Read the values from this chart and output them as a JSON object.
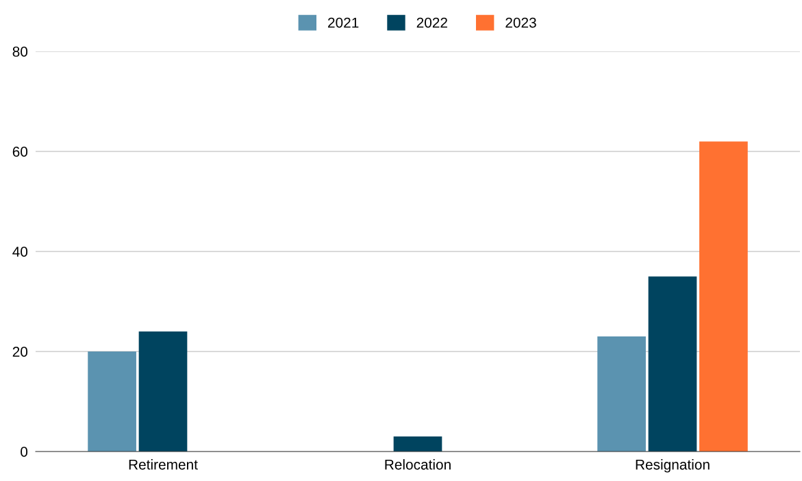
{
  "chart_data": {
    "type": "bar",
    "categories": [
      "Retirement",
      "Relocation",
      "Resignation"
    ],
    "series": [
      {
        "name": "2021",
        "color": "#5b93b0",
        "values": [
          20,
          null,
          23
        ]
      },
      {
        "name": "2022",
        "color": "#00445f",
        "values": [
          24,
          3,
          35
        ]
      },
      {
        "name": "2023",
        "color": "#ff7131",
        "values": [
          null,
          null,
          62
        ]
      }
    ],
    "ylim": [
      0,
      80
    ],
    "yticks": [
      0,
      20,
      40,
      60,
      80
    ],
    "grid": "y",
    "legend": "top"
  }
}
